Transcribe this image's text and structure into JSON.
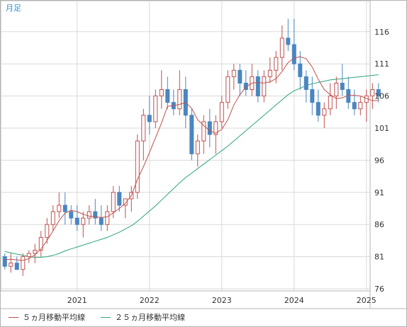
{
  "period_label": "月足",
  "legend": [
    {
      "label": "５ヵ月移動平均線",
      "color": "#c0504d"
    },
    {
      "label": "２５ヵ月移動平均線",
      "color": "#2aa57a"
    }
  ],
  "colors": {
    "up": "#c0504d",
    "down": "#4a86c0",
    "ma5": "#c0504d",
    "ma25": "#2aa57a",
    "grid": "#d9d9d9"
  },
  "chart_data": {
    "type": "candlestick",
    "ylim": [
      76,
      120
    ],
    "y_ticks": [
      76,
      81,
      86,
      91,
      96,
      101,
      106,
      111,
      116
    ],
    "x_ticks": [
      {
        "label": "2021",
        "month": 12
      },
      {
        "label": "2022",
        "month": 24
      },
      {
        "label": "2023",
        "month": 36
      },
      {
        "label": "2024",
        "month": 48
      },
      {
        "label": "2025",
        "month": 60
      }
    ],
    "candles": [
      [
        81,
        81.5,
        79,
        79.5
      ],
      [
        79.5,
        81.5,
        78.5,
        80
      ],
      [
        80,
        81,
        79,
        79
      ],
      [
        79,
        81.5,
        78,
        81
      ],
      [
        81,
        82,
        80,
        81.5
      ],
      [
        81.5,
        83,
        80,
        82
      ],
      [
        82,
        85,
        81,
        84
      ],
      [
        84,
        87,
        83,
        86
      ],
      [
        86,
        89,
        85,
        88
      ],
      [
        88,
        91,
        87,
        89
      ],
      [
        89,
        91,
        86,
        88
      ],
      [
        88,
        89,
        86,
        87
      ],
      [
        87,
        89,
        85,
        86
      ],
      [
        86,
        88,
        84,
        87
      ],
      [
        87,
        89,
        86,
        88
      ],
      [
        88,
        90,
        86,
        87
      ],
      [
        87,
        89,
        85,
        86
      ],
      [
        86,
        89,
        85,
        88
      ],
      [
        88,
        92,
        87,
        91
      ],
      [
        91,
        92,
        88,
        89
      ],
      [
        89,
        90,
        87,
        90
      ],
      [
        90,
        92,
        88,
        91
      ],
      [
        91,
        100,
        90,
        99
      ],
      [
        99,
        104,
        96,
        103
      ],
      [
        103,
        106,
        100,
        102
      ],
      [
        102,
        107,
        101,
        106
      ],
      [
        106,
        110,
        104,
        107
      ],
      [
        107,
        109,
        104,
        105
      ],
      [
        105,
        107,
        103,
        104
      ],
      [
        104,
        110,
        103,
        107
      ],
      [
        107,
        109,
        101,
        103
      ],
      [
        103,
        104,
        96,
        97
      ],
      [
        97,
        100,
        95,
        99
      ],
      [
        99,
        103,
        97,
        102
      ],
      [
        102,
        104,
        98,
        100
      ],
      [
        100,
        103,
        97,
        102
      ],
      [
        102,
        106,
        101,
        105
      ],
      [
        105,
        110,
        104,
        109
      ],
      [
        109,
        111,
        107,
        110
      ],
      [
        110,
        111,
        106,
        108
      ],
      [
        108,
        110,
        106,
        107
      ],
      [
        107,
        111,
        106,
        109
      ],
      [
        109,
        110,
        105,
        106
      ],
      [
        106,
        110,
        105,
        109
      ],
      [
        109,
        112,
        108,
        110
      ],
      [
        110,
        113,
        108,
        112
      ],
      [
        112,
        117,
        110,
        115
      ],
      [
        115,
        118,
        113,
        114
      ],
      [
        114,
        118,
        110,
        111
      ],
      [
        111,
        113,
        107,
        109
      ],
      [
        109,
        110,
        105,
        107
      ],
      [
        107,
        109,
        103,
        105
      ],
      [
        105,
        107,
        102,
        103
      ],
      [
        103,
        105,
        101,
        104
      ],
      [
        104,
        108,
        103,
        106
      ],
      [
        106,
        109,
        104,
        108
      ],
      [
        108,
        111,
        106,
        107
      ],
      [
        107,
        109,
        104,
        105
      ],
      [
        105,
        107,
        103,
        104
      ],
      [
        104,
        106,
        103,
        105
      ],
      [
        105,
        107,
        102,
        106
      ],
      [
        106,
        108,
        104,
        107
      ],
      [
        107,
        108,
        105,
        106
      ]
    ],
    "ma5": [
      80.5,
      80.6,
      80.5,
      80.4,
      80.7,
      81.3,
      82.2,
      83.5,
      85,
      86.6,
      87.8,
      88.2,
      88,
      87.6,
      87.3,
      87.2,
      87.1,
      87.2,
      87.8,
      88.5,
      89.3,
      90.5,
      93,
      95,
      97.2,
      99.5,
      101.8,
      104.4,
      104.5,
      104.7,
      105,
      104.1,
      102.3,
      101.4,
      100.6,
      100.2,
      100.8,
      102.3,
      104.6,
      106.2,
      107.4,
      108,
      108.1,
      108,
      108.2,
      108.7,
      109.8,
      111.2,
      111.9,
      112.1,
      111.8,
      110.5,
      108.6,
      107,
      106.2,
      105.6,
      105.7,
      106.1,
      106.1,
      106,
      105.6,
      105.3,
      105.3
    ],
    "ma25": [
      81.8,
      81.6,
      81.4,
      81.2,
      81,
      80.9,
      80.9,
      81,
      81.2,
      81.5,
      81.9,
      82.2,
      82.5,
      82.8,
      83.1,
      83.4,
      83.7,
      84,
      84.4,
      84.8,
      85.3,
      85.8,
      86.5,
      87.3,
      88.1,
      88.9,
      89.8,
      90.7,
      91.6,
      92.5,
      93.3,
      94,
      94.7,
      95.4,
      96.1,
      96.8,
      97.5,
      98.2,
      99,
      99.8,
      100.6,
      101.4,
      102.2,
      103,
      103.8,
      104.6,
      105.4,
      106.2,
      106.8,
      107.2,
      107.6,
      107.9,
      108.1,
      108.3,
      108.5,
      108.6,
      108.7,
      108.8,
      108.9,
      109,
      109.1,
      109.2,
      109.3
    ]
  }
}
